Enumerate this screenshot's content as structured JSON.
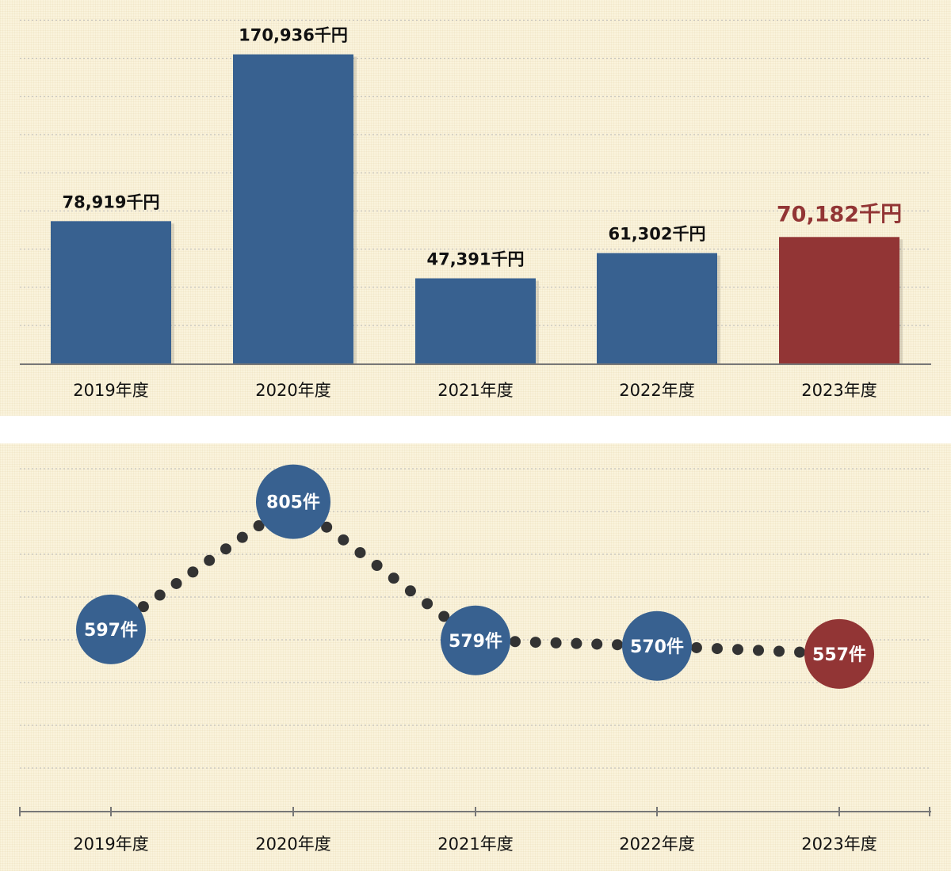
{
  "colors": {
    "bar": "#386190",
    "highlight": "#923535",
    "axis": "#777777",
    "grid": "#b8b8b8",
    "dot": "#333333",
    "label_dark": "#111111",
    "label_white": "#ffffff"
  },
  "chart_data": [
    {
      "type": "bar",
      "categories": [
        "2019年度",
        "2020年度",
        "2021年度",
        "2022年度",
        "2023年度"
      ],
      "values": [
        78919,
        170936,
        47391,
        61302,
        70182
      ],
      "value_labels": [
        "78,919千円",
        "170,936千円",
        "47,391千円",
        "61,302千円",
        "70,182千円"
      ],
      "highlight_index": 4,
      "ylim": [
        0,
        190000
      ],
      "grid": true
    },
    {
      "type": "line",
      "categories": [
        "2019年度",
        "2020年度",
        "2021年度",
        "2022年度",
        "2023年度"
      ],
      "values": [
        597,
        805,
        579,
        570,
        557
      ],
      "value_labels": [
        "597件",
        "805件",
        "579件",
        "570件",
        "557件"
      ],
      "highlight_index": 4,
      "ylim": [
        300,
        900
      ],
      "grid": true,
      "line_style": "dotted"
    }
  ]
}
